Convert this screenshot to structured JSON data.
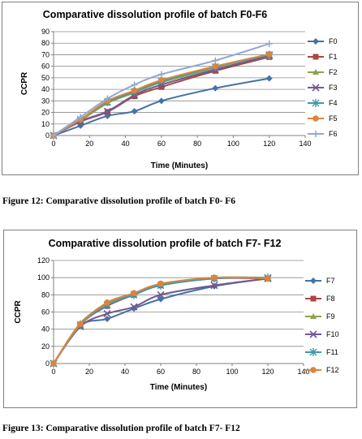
{
  "figures": [
    {
      "caption": "Figure 12: Comparative dissolution profile of batch F0- F6"
    },
    {
      "caption": "Figure 13: Comparative dissolution profile of batch F7- F12"
    }
  ],
  "chart_data": [
    {
      "type": "line",
      "title": "Comparative dissolution profile of batch F0-F6",
      "xlabel": "Time (Minutes)",
      "ylabel": "CCPR",
      "xlim": [
        0,
        140
      ],
      "ylim": [
        0,
        90
      ],
      "xticks": [
        0,
        20,
        40,
        60,
        80,
        100,
        120,
        140
      ],
      "yticks": [
        0,
        10,
        20,
        30,
        40,
        50,
        60,
        70,
        80,
        90
      ],
      "grid": "horizontal",
      "legend_position": "right",
      "x": [
        0,
        15,
        30,
        45,
        60,
        90,
        120
      ],
      "series": [
        {
          "name": "F0",
          "color": "#4572a7",
          "marker": "diamond",
          "values": [
            0,
            8.5,
            17,
            21,
            30,
            41,
            49.5
          ]
        },
        {
          "name": "F1",
          "color": "#aa4643",
          "marker": "square",
          "values": [
            0,
            12,
            20.5,
            34,
            42,
            56,
            68
          ]
        },
        {
          "name": "F2",
          "color": "#89a54e",
          "marker": "triangle",
          "values": [
            0,
            13,
            28,
            37,
            46,
            58,
            68.5
          ]
        },
        {
          "name": "F3",
          "color": "#71588f",
          "marker": "x",
          "values": [
            0,
            12.5,
            21,
            35,
            44,
            57,
            69
          ]
        },
        {
          "name": "F4",
          "color": "#4198af",
          "marker": "star",
          "values": [
            0,
            14,
            29,
            38,
            47,
            59.5,
            70
          ]
        },
        {
          "name": "F5",
          "color": "#db843d",
          "marker": "circle",
          "values": [
            0,
            14,
            30,
            39,
            48,
            60,
            70.5
          ]
        },
        {
          "name": "F6",
          "color": "#93a9cf",
          "marker": "plus",
          "values": [
            0,
            16,
            32,
            44,
            53,
            65,
            79.5
          ]
        }
      ]
    },
    {
      "type": "line",
      "title": "Comparative dissolution profile of batch F7- F12",
      "xlabel": "Time (Minutes)",
      "ylabel": "CCPR",
      "xlim": [
        0,
        140
      ],
      "ylim": [
        0,
        120
      ],
      "xticks": [
        0,
        20,
        40,
        60,
        80,
        100,
        120,
        140
      ],
      "yticks": [
        0,
        20,
        40,
        60,
        80,
        100,
        120
      ],
      "grid": "horizontal",
      "legend_position": "right",
      "x": [
        0,
        15,
        30,
        45,
        60,
        90,
        120
      ],
      "series": [
        {
          "name": "F7",
          "color": "#4572a7",
          "marker": "diamond",
          "values": [
            0,
            44,
            52,
            64,
            75,
            90,
            99
          ]
        },
        {
          "name": "F8",
          "color": "#aa4643",
          "marker": "square",
          "values": [
            0,
            45,
            67,
            80,
            91,
            99,
            99
          ]
        },
        {
          "name": "F9",
          "color": "#89a54e",
          "marker": "triangle",
          "values": [
            0,
            47,
            69,
            81,
            92,
            100,
            100
          ]
        },
        {
          "name": "F10",
          "color": "#71588f",
          "marker": "x",
          "values": [
            0,
            43,
            58,
            66,
            80,
            91,
            99
          ]
        },
        {
          "name": "F11",
          "color": "#4198af",
          "marker": "star",
          "values": [
            0,
            45,
            68,
            80,
            91,
            99,
            100
          ]
        },
        {
          "name": "F12",
          "color": "#db843d",
          "marker": "circle",
          "values": [
            0,
            46,
            71,
            82,
            93,
            100,
            99
          ]
        }
      ]
    }
  ]
}
